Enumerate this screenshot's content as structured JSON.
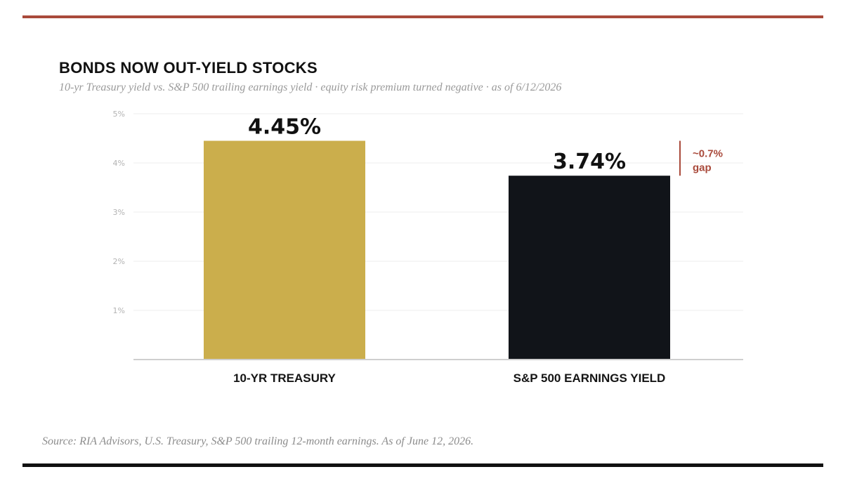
{
  "colors": {
    "accent": "#a94a3b",
    "treasury": "#cbae4c",
    "sp500": "#111419",
    "grid": "#ececec",
    "baseline": "#cfcfcf"
  },
  "header": {
    "title": "BONDS NOW OUT-YIELD STOCKS",
    "subtitle": "10-yr Treasury yield vs. S&P 500 trailing earnings yield · equity risk premium turned negative · as of 6/12/2026"
  },
  "footer": {
    "source": "Source: RIA Advisors, U.S. Treasury, S&P 500 trailing 12-month earnings. As of June 12, 2026."
  },
  "chart_data": {
    "type": "bar",
    "categories": [
      "10-YR TREASURY",
      "S&P 500 EARNINGS YIELD"
    ],
    "values": [
      4.45,
      3.74
    ],
    "data_labels": [
      "4.45%",
      "3.74%"
    ],
    "ylim": [
      0,
      5
    ],
    "yticks": [
      1,
      2,
      3,
      4,
      5
    ],
    "ytick_labels": [
      "1%",
      "2%",
      "3%",
      "4%",
      "5%"
    ],
    "grid": true,
    "bar_colors": [
      "#cbae4c",
      "#111419"
    ],
    "annotation": {
      "line1": "~0.7%",
      "line2": "gap",
      "from": 3.74,
      "to": 4.45
    }
  }
}
